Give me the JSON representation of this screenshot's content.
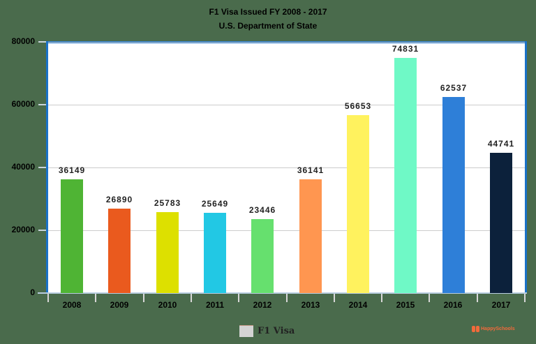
{
  "chart_data": {
    "type": "bar",
    "title": "F1 Visa Issued FY 2008 - 2017",
    "subtitle": "U.S. Department of State",
    "xlabel": "",
    "ylabel": "",
    "categories": [
      "2008",
      "2009",
      "2010",
      "2011",
      "2012",
      "2013",
      "2014",
      "2015",
      "2016",
      "2017"
    ],
    "series": [
      {
        "name": "F1 Visa",
        "values": [
          36149,
          26890,
          25783,
          25649,
          23446,
          36141,
          56653,
          74831,
          62537,
          44741
        ]
      }
    ],
    "value_labels": [
      "36149",
      "26890",
      "25783",
      "25649",
      "23446",
      "36141",
      "56653",
      "74831",
      "62537",
      "44741"
    ],
    "bar_colors": [
      "#4fb434",
      "#ea5a1e",
      "#dde000",
      "#22c8e4",
      "#66e06e",
      "#ff9650",
      "#fff25e",
      "#6ff9c6",
      "#2e7fd8",
      "#0c213b"
    ],
    "ylim": [
      0,
      80000
    ],
    "yticks": [
      "0",
      "20000",
      "40000",
      "60000",
      "80000"
    ],
    "grid": true,
    "legend_position": "bottom",
    "legend": [
      {
        "label": "F1 Visa",
        "color": "#d4d4d4"
      }
    ]
  },
  "colors": {
    "background": "#4a6b4c",
    "plot_border": "#1a72c8",
    "plot_background": "#ffffff",
    "gridline": "#cccccc"
  },
  "watermark": {
    "text": "HappySchools"
  }
}
